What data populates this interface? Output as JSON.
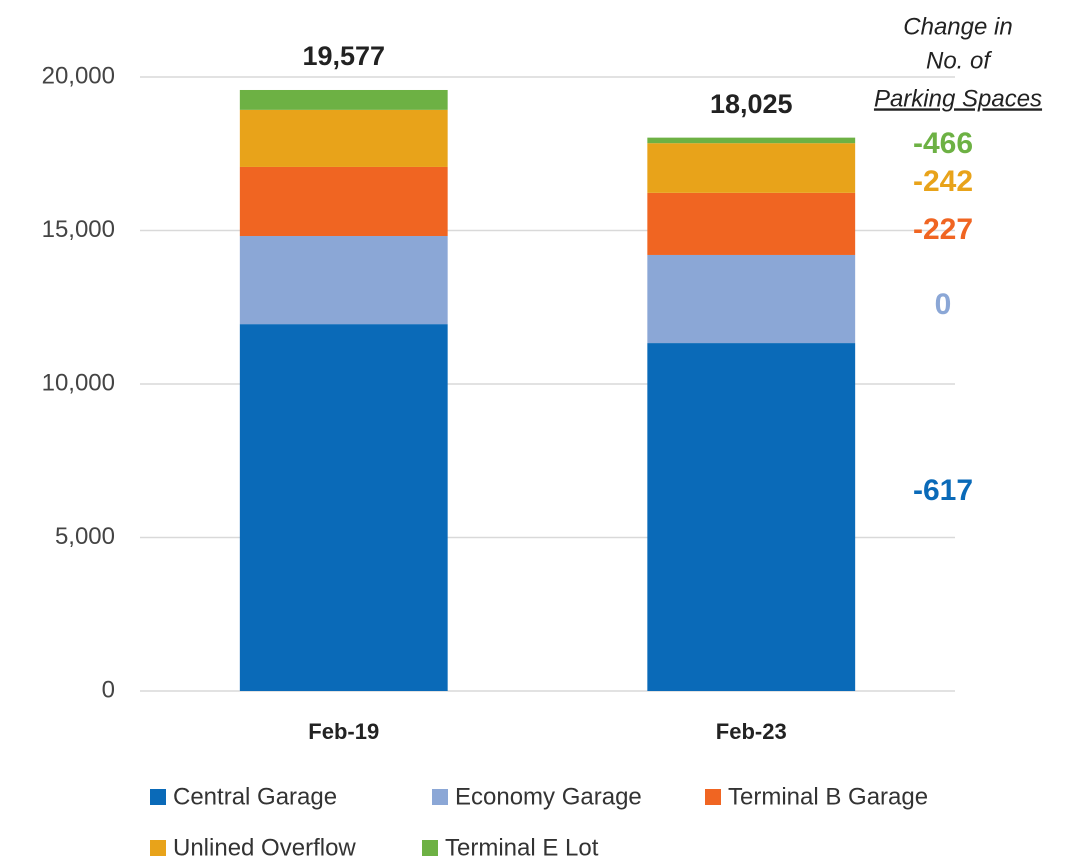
{
  "chart_data": {
    "type": "stacked_bar",
    "categories": [
      "Feb-19",
      "Feb-23"
    ],
    "series": [
      {
        "name": "Central Garage",
        "color": "#0a6ab8",
        "values": [
          11950,
          11333
        ],
        "change": -617
      },
      {
        "name": "Economy Garage",
        "color": "#8ba7d6",
        "values": [
          2870,
          2870
        ],
        "change": 0
      },
      {
        "name": "Terminal B Garage",
        "color": "#f06522",
        "values": [
          2250,
          2023
        ],
        "change": -227
      },
      {
        "name": "Unlined Overflow",
        "color": "#e8a31a",
        "values": [
          1860,
          1618
        ],
        "change": -242
      },
      {
        "name": "Terminal E Lot",
        "color": "#6db144",
        "values": [
          647,
          181
        ],
        "change": -466
      }
    ],
    "totals": {
      "values": [
        19577,
        18025
      ],
      "value_labels": [
        "19,577",
        "18,025"
      ]
    },
    "change_title": [
      "Change in",
      "No. of",
      "Parking Spaces"
    ],
    "ylim": [
      0,
      20000
    ],
    "yticks": [
      0,
      {
        "value": 5000,
        "label": "5,000"
      },
      {
        "value": 10000,
        "label": "10,000"
      },
      {
        "value": 15000,
        "label": "15,000"
      },
      {
        "value": 20000,
        "label": "20,000"
      }
    ],
    "grid": true
  }
}
